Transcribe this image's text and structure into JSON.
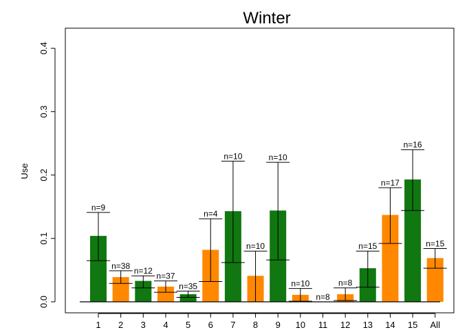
{
  "chart_data": {
    "type": "bar",
    "title": "Winter",
    "xlabel": "",
    "ylabel": "Use",
    "ylim": [
      0,
      0.44
    ],
    "y_ticks": [
      "0.0",
      "0.1",
      "0.2",
      "0.3",
      "0.4"
    ],
    "y_tick_values": [
      0.0,
      0.1,
      0.2,
      0.3,
      0.4
    ],
    "categories": [
      "1",
      "2",
      "3",
      "4",
      "5",
      "6",
      "7",
      "8",
      "9",
      "10",
      "11",
      "12",
      "13",
      "14",
      "15",
      "All"
    ],
    "values": [
      0.104,
      0.039,
      0.033,
      0.024,
      0.012,
      0.082,
      0.143,
      0.041,
      0.144,
      0.011,
      0.0,
      0.012,
      0.053,
      0.137,
      0.193,
      0.069
    ],
    "error_low": [
      0.065,
      0.029,
      0.022,
      0.015,
      0.007,
      0.032,
      0.062,
      0.0,
      0.066,
      0.001,
      0.0,
      0.002,
      0.023,
      0.092,
      0.144,
      0.053
    ],
    "error_high": [
      0.141,
      0.049,
      0.041,
      0.033,
      0.017,
      0.131,
      0.222,
      0.08,
      0.22,
      0.021,
      0.0,
      0.022,
      0.08,
      0.18,
      0.24,
      0.084
    ],
    "n_labels": [
      "n=9",
      "n=38",
      "n=12",
      "n=37",
      "n=35",
      "n=4",
      "n=10",
      "n=10",
      "n=10",
      "n=10",
      "n=8",
      "n=8",
      "n=15",
      "n=17",
      "n=16",
      "n=15"
    ],
    "bar_colors": [
      "#117711",
      "#ff8800",
      "#117711",
      "#ff8800",
      "#117711",
      "#ff8800",
      "#117711",
      "#ff8800",
      "#117711",
      "#ff8800",
      "#117711",
      "#ff8800",
      "#117711",
      "#ff8800",
      "#117711",
      "#ff8800"
    ],
    "colors": {
      "green": "#117711",
      "orange": "#ff8800"
    },
    "grid": false,
    "legend": "none"
  }
}
